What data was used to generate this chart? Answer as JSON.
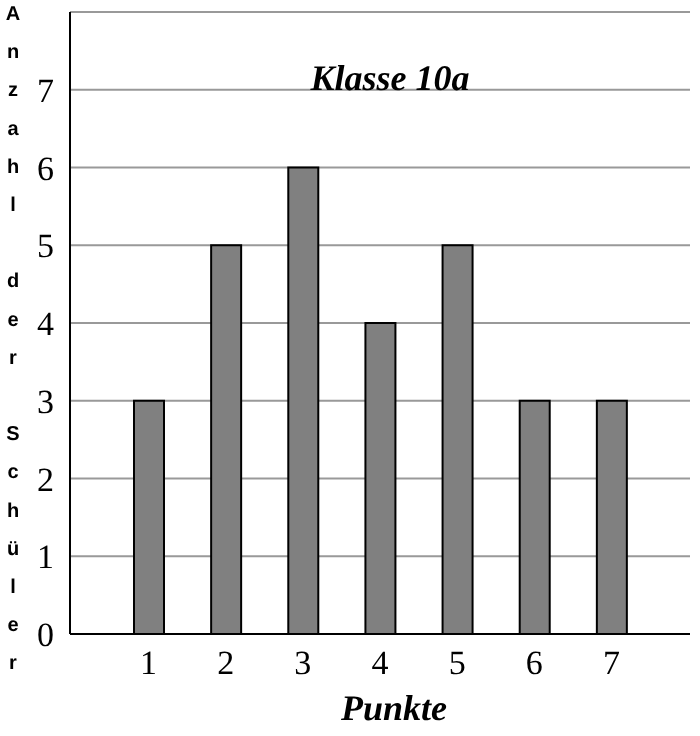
{
  "chart_data": {
    "type": "bar",
    "title": "Klasse 10a",
    "xlabel": "Punkte",
    "ylabel": "Anzahl der Schüler",
    "categories": [
      "1",
      "2",
      "3",
      "4",
      "5",
      "6",
      "7"
    ],
    "values": [
      3,
      5,
      6,
      4,
      5,
      3,
      3
    ],
    "color": "#808080",
    "ylim": [
      0,
      8
    ],
    "yticks": [
      0,
      1,
      2,
      3,
      4,
      5,
      6,
      7
    ],
    "grid": "y",
    "legend": false
  }
}
